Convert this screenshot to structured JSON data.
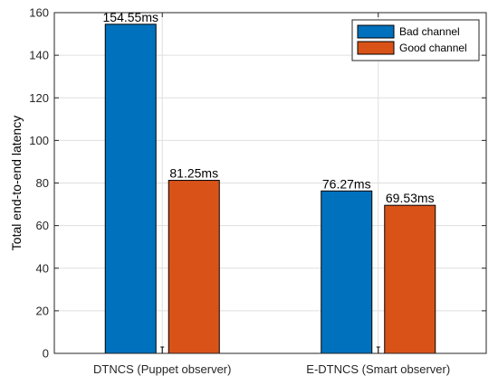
{
  "chart_data": {
    "type": "bar",
    "categories": [
      "DTNCS (Puppet observer)",
      "E-DTNCS (Smart observer)"
    ],
    "series": [
      {
        "name": "Bad channel",
        "values": [
          154.55,
          76.27
        ],
        "labels": [
          "154.55ms",
          "76.27ms"
        ],
        "color": "#0072BD"
      },
      {
        "name": "Good channel",
        "values": [
          81.25,
          69.53
        ],
        "labels": [
          "81.25ms",
          "69.53ms"
        ],
        "color": "#D95319"
      }
    ],
    "title": "",
    "xlabel": "",
    "ylabel": "Total end-to-end latency",
    "ylim": [
      0,
      160
    ],
    "yticks": [
      0,
      20,
      40,
      60,
      80,
      100,
      120,
      140,
      160
    ],
    "grid": true,
    "legend_position": "top-right",
    "error_bars": [
      [
        0,
        0
      ],
      [
        0,
        0
      ]
    ]
  }
}
